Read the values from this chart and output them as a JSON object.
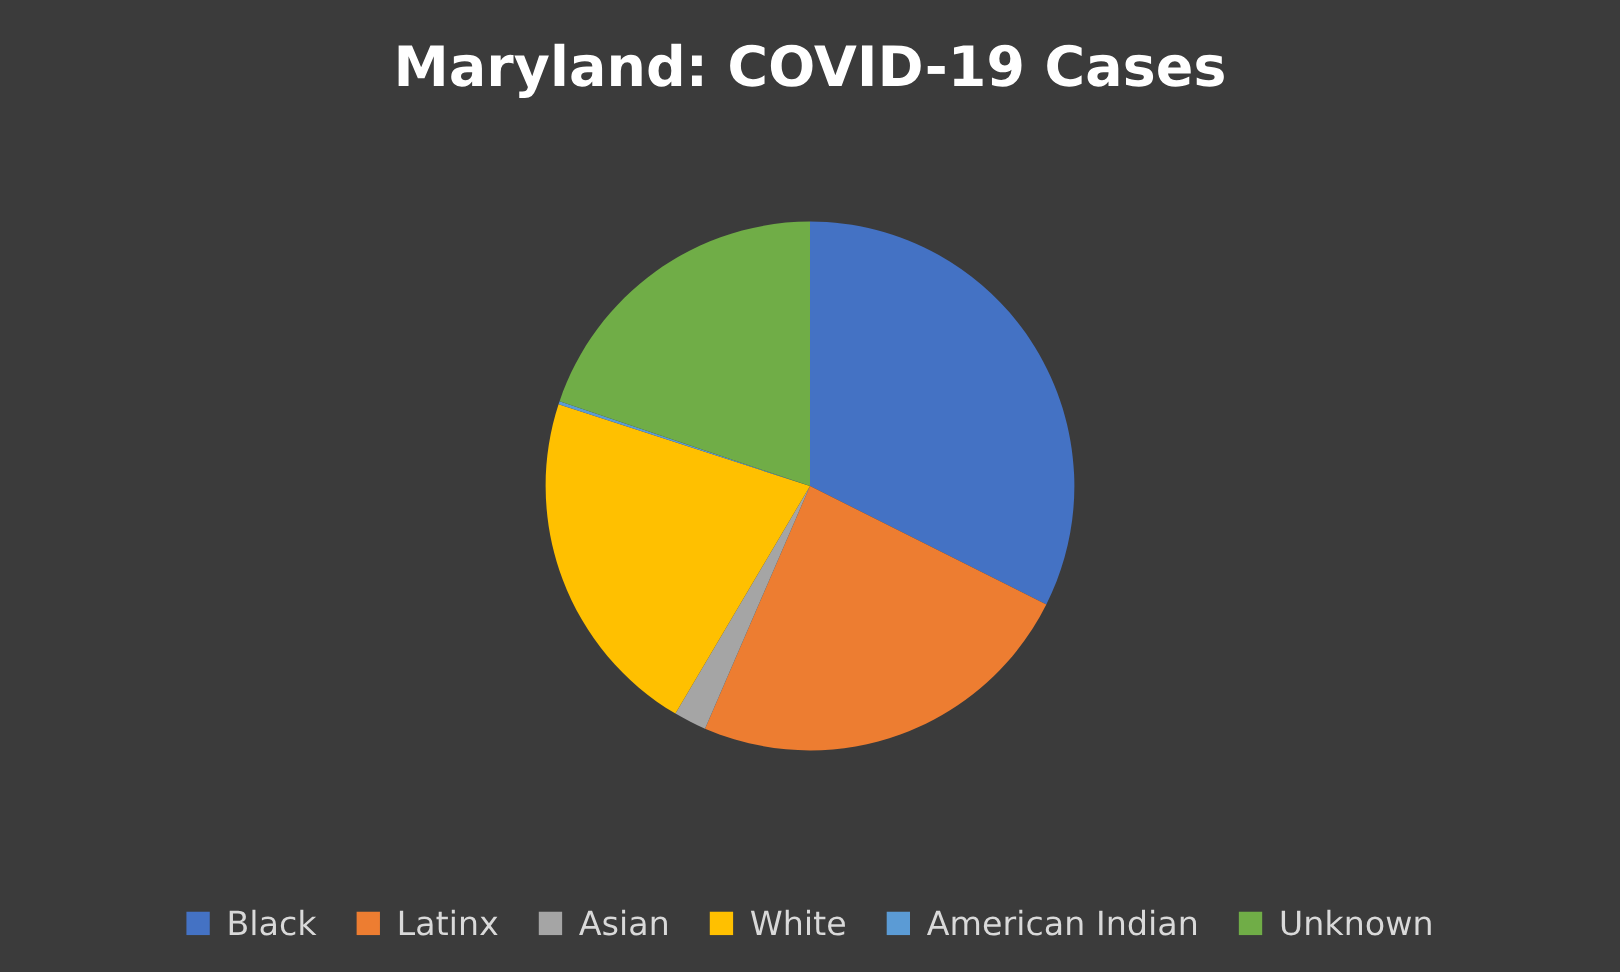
{
  "chart_data": {
    "type": "pie",
    "title": "Maryland: COVID-19 Cases",
    "categories": [
      "Black",
      "Latinx",
      "Asian",
      "White",
      "American Indian",
      "Unknown"
    ],
    "values": [
      32.4,
      24.1,
      2.0,
      21.5,
      0.2,
      19.8
    ],
    "colors": [
      "#4472c4",
      "#ed7d31",
      "#a5a5a5",
      "#ffc000",
      "#5b9bd5",
      "#70ad47"
    ],
    "legend": "bottom"
  }
}
